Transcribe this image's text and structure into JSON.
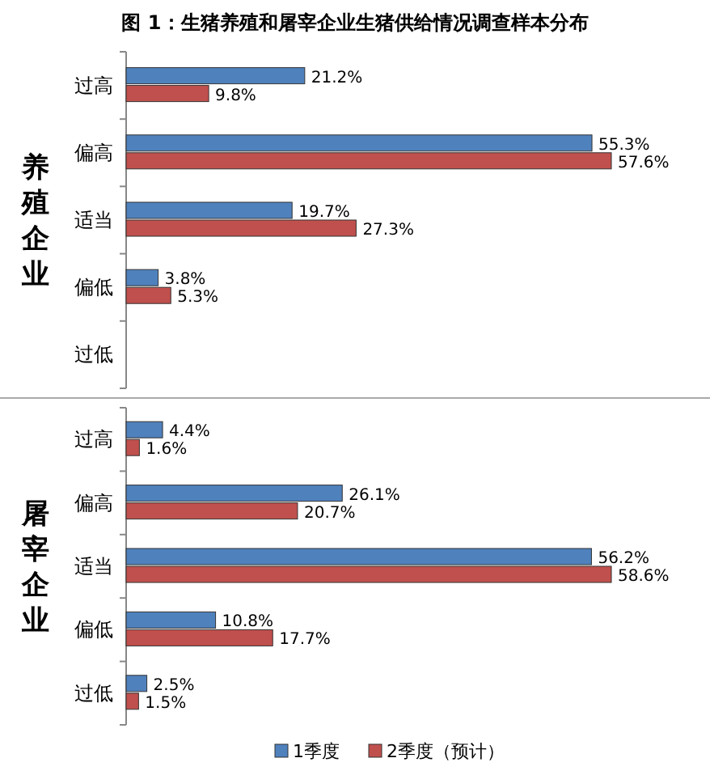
{
  "chart_data": [
    {
      "type": "bar",
      "orientation": "horizontal",
      "title": "图 1：生猪养殖和屠宰企业生猪供给情况调查样本分布",
      "ylabel": "养殖企业",
      "categories": [
        "过高",
        "偏高",
        "适当",
        "偏低",
        "过低"
      ],
      "series": [
        {
          "color": "#4f81bd",
          "values": [
            21.2,
            55.3,
            19.7,
            3.8,
            null
          ],
          "value_labels": [
            "21.2%",
            "55.3%",
            "19.7%",
            "3.8%",
            null
          ]
        },
        {
          "color": "#c0504d",
          "values": [
            9.8,
            57.6,
            27.3,
            5.3,
            null
          ],
          "value_labels": [
            "9.8%",
            "57.6%",
            "27.3%",
            "5.3%",
            null
          ]
        }
      ]
    },
    {
      "type": "bar",
      "orientation": "horizontal",
      "ylabel": "屠宰企业",
      "categories": [
        "过高",
        "偏高",
        "适当",
        "偏低",
        "过低"
      ],
      "legend": "bottom",
      "series": [
        {
          "name": "1季度",
          "color": "#4f81bd",
          "values": [
            4.4,
            26.1,
            56.2,
            10.8,
            2.5
          ],
          "value_labels": [
            "4.4%",
            "26.1%",
            "56.2%",
            "10.8%",
            "2.5%"
          ]
        },
        {
          "name": "2季度（预计）",
          "color": "#c0504d",
          "values": [
            1.6,
            20.7,
            58.6,
            17.7,
            1.5
          ],
          "value_labels": [
            "1.6%",
            "20.7%",
            "58.6%",
            "17.7%",
            "1.5%"
          ]
        }
      ]
    }
  ]
}
